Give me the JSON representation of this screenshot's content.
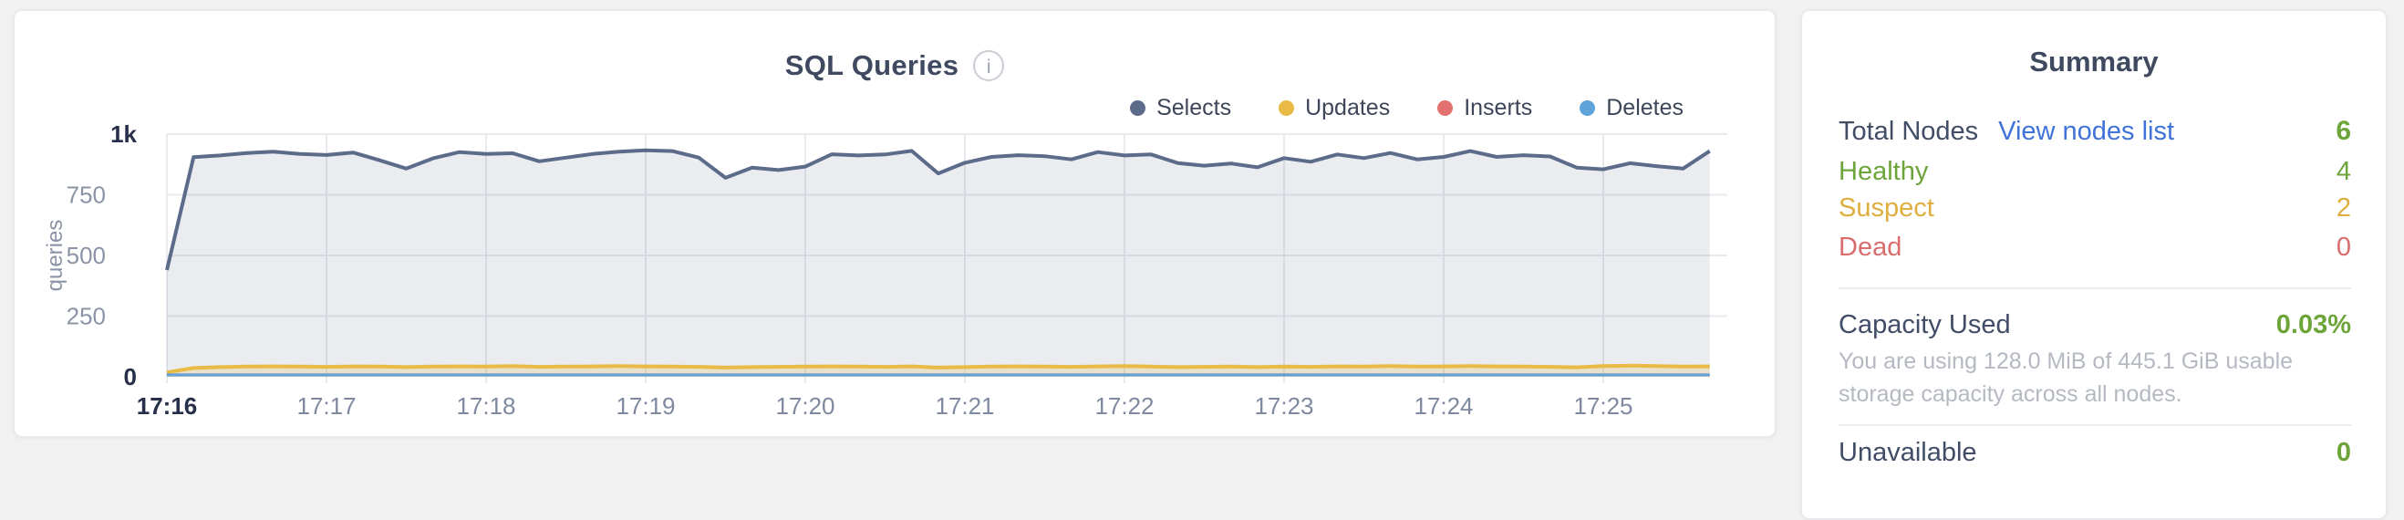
{
  "page": {
    "background": "#f1f1f2"
  },
  "chart": {
    "title": "SQL Queries",
    "info_icon": "i"
  },
  "chart_data": {
    "type": "area",
    "title": "SQL Queries",
    "xlabel": "",
    "ylabel": "queries",
    "x_start": "17:16:00",
    "x_interval_seconds": 10,
    "x_ticks": [
      {
        "label": "17:16",
        "bold": true
      },
      {
        "label": "17:17",
        "bold": false
      },
      {
        "label": "17:18",
        "bold": false
      },
      {
        "label": "17:19",
        "bold": false
      },
      {
        "label": "17:20",
        "bold": false
      },
      {
        "label": "17:21",
        "bold": false
      },
      {
        "label": "17:22",
        "bold": false
      },
      {
        "label": "17:23",
        "bold": false
      },
      {
        "label": "17:24",
        "bold": false
      },
      {
        "label": "17:25",
        "bold": false
      }
    ],
    "y_ticks": [
      {
        "label": "0",
        "value": 0,
        "bold": true
      },
      {
        "label": "250",
        "value": 250,
        "bold": false
      },
      {
        "label": "500",
        "value": 500,
        "bold": false
      },
      {
        "label": "750",
        "value": 750,
        "bold": false
      },
      {
        "label": "1k",
        "value": 1000,
        "bold": true
      }
    ],
    "ylim": [
      0,
      1000
    ],
    "grid": true,
    "legend_position": "top-right",
    "series": [
      {
        "name": "Selects",
        "color": "#5c6b8a",
        "values": [
          440,
          905,
          912,
          922,
          928,
          918,
          914,
          924,
          892,
          858,
          900,
          926,
          918,
          921,
          888,
          903,
          918,
          928,
          933,
          930,
          903,
          820,
          862,
          852,
          866,
          917,
          912,
          916,
          931,
          838,
          882,
          906,
          913,
          909,
          896,
          926,
          912,
          916,
          881,
          870,
          879,
          863,
          901,
          886,
          916,
          901,
          922,
          896,
          906,
          930,
          906,
          913,
          908,
          862,
          855,
          880,
          868,
          858,
          930
        ]
      },
      {
        "name": "Updates",
        "color": "#e9ba45",
        "values": [
          18,
          36,
          40,
          42,
          43,
          42,
          41,
          43,
          42,
          40,
          42,
          43,
          42,
          44,
          41,
          42,
          43,
          44,
          43,
          42,
          41,
          38,
          40,
          41,
          42,
          43,
          42,
          41,
          43,
          38,
          40,
          42,
          43,
          42,
          41,
          43,
          44,
          42,
          40,
          41,
          42,
          40,
          42,
          41,
          43,
          42,
          44,
          42,
          43,
          44,
          43,
          42,
          41,
          39,
          44,
          46,
          44,
          42,
          43
        ]
      },
      {
        "name": "Inserts",
        "color": "#e3716f",
        "values": [
          8,
          8,
          8,
          8,
          8,
          8,
          8,
          8,
          8,
          8,
          8,
          8,
          8,
          8,
          8,
          8,
          8,
          8,
          8,
          8,
          8,
          8,
          8,
          8,
          8,
          8,
          8,
          8,
          8,
          8,
          8,
          8,
          8,
          8,
          8,
          8,
          8,
          8,
          8,
          8,
          8,
          8,
          8,
          8,
          8,
          8,
          8,
          8,
          8,
          8,
          8,
          8,
          8,
          8,
          8,
          8,
          8,
          8,
          8
        ]
      },
      {
        "name": "Deletes",
        "color": "#5ea4da",
        "values": [
          8,
          8,
          8,
          8,
          8,
          8,
          8,
          8,
          8,
          8,
          8,
          8,
          8,
          8,
          8,
          8,
          8,
          8,
          8,
          8,
          8,
          8,
          8,
          8,
          8,
          8,
          8,
          8,
          8,
          8,
          8,
          8,
          8,
          8,
          8,
          8,
          8,
          8,
          8,
          8,
          8,
          8,
          8,
          8,
          8,
          8,
          8,
          8,
          8,
          8,
          8,
          8,
          8,
          8,
          8,
          8,
          8,
          8,
          8
        ]
      }
    ]
  },
  "summary": {
    "title": "Summary",
    "total_nodes": {
      "label": "Total Nodes",
      "link": "View nodes list",
      "link_color": "#4072d9",
      "value": "6",
      "value_color": "#6da53a"
    },
    "statuses": [
      {
        "label": "Healthy",
        "value": "4",
        "color": "#6da53a"
      },
      {
        "label": "Suspect",
        "value": "2",
        "color": "#deae3e"
      },
      {
        "label": "Dead",
        "value": "0",
        "color": "#d96c6c"
      }
    ],
    "capacity": {
      "label": "Capacity Used",
      "value": "0.03%",
      "value_color": "#6da53a",
      "description": "You are using 128.0 MiB of 445.1 GiB usable storage capacity across all nodes."
    },
    "unavailable": {
      "label": "Unavailable",
      "value": "0",
      "value_color": "#6da53a"
    }
  }
}
